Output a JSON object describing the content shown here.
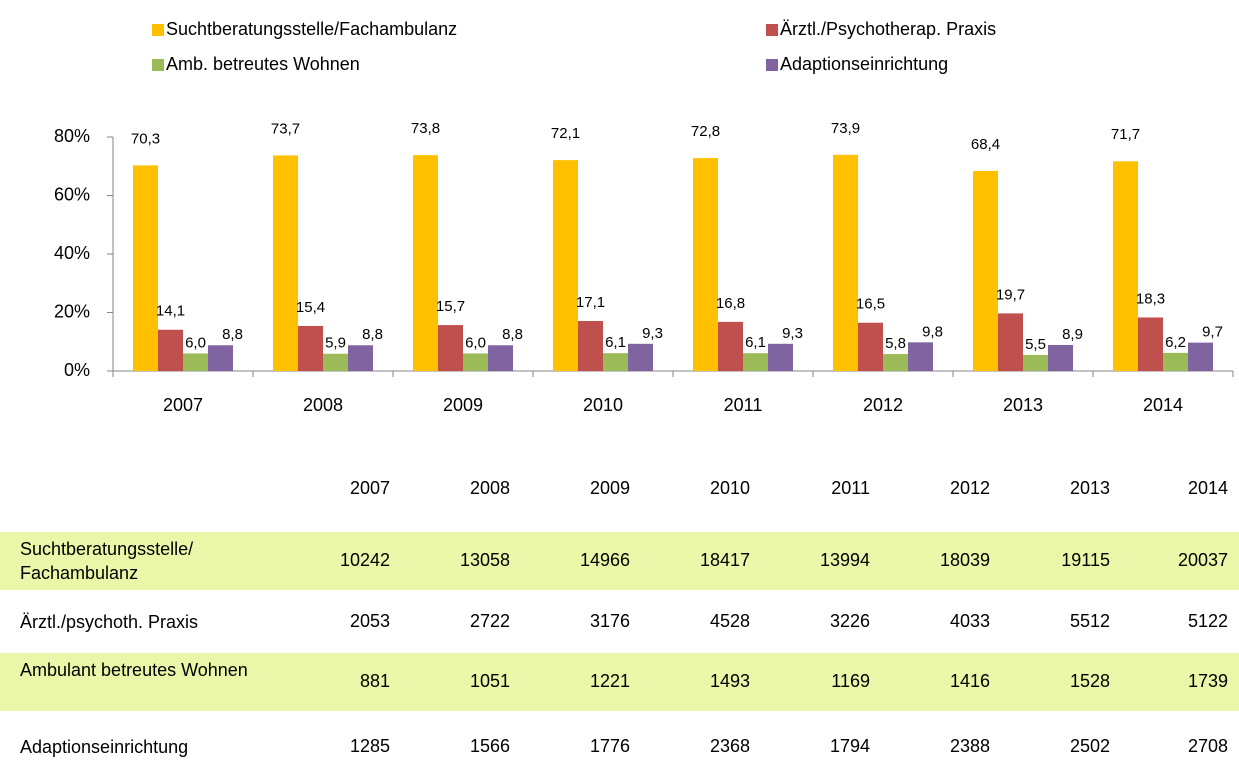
{
  "chart_data": {
    "type": "bar",
    "categories": [
      "2007",
      "2008",
      "2009",
      "2010",
      "2011",
      "2012",
      "2013",
      "2014"
    ],
    "series": [
      {
        "name": "Suchtberatungsstelle/Fachambulanz",
        "color": "#ffc000",
        "values": [
          70.3,
          73.7,
          73.8,
          72.1,
          72.8,
          73.9,
          68.4,
          71.7
        ],
        "value_labels": [
          "70,3",
          "73,7",
          "73,8",
          "72,1",
          "72,8",
          "73,9",
          "68,4",
          "71,7"
        ]
      },
      {
        "name": "Ärztl./Psychotherap. Praxis",
        "color": "#c0504d",
        "values": [
          14.1,
          15.4,
          15.7,
          17.1,
          16.8,
          16.5,
          19.7,
          18.3
        ],
        "value_labels": [
          "14,1",
          "15,4",
          "15,7",
          "17,1",
          "16,8",
          "16,5",
          "19,7",
          "18,3"
        ]
      },
      {
        "name": "Amb. betreutes Wohnen",
        "color": "#9bbb59",
        "values": [
          6.0,
          5.9,
          6.0,
          6.1,
          6.1,
          5.8,
          5.5,
          6.2
        ],
        "value_labels": [
          "6,0",
          "5,9",
          "6,0",
          "6,1",
          "6,1",
          "5,8",
          "5,5",
          "6,2"
        ]
      },
      {
        "name": "Adaptionseinrichtung",
        "color": "#8064a2",
        "values": [
          8.8,
          8.8,
          8.8,
          9.3,
          9.3,
          9.8,
          8.9,
          9.7
        ],
        "value_labels": [
          "8,8",
          "8,8",
          "8,8",
          "9,3",
          "9,3",
          "9,8",
          "8,9",
          "9,7"
        ]
      }
    ],
    "ylim": [
      0,
      80
    ],
    "yticks": [
      {
        "value": 0,
        "label": "0%"
      },
      {
        "value": 20,
        "label": "20%"
      },
      {
        "value": 40,
        "label": "40%"
      },
      {
        "value": 60,
        "label": "60%"
      },
      {
        "value": 80,
        "label": "80%"
      }
    ],
    "legend": "top"
  },
  "table": {
    "header": [
      "2007",
      "2008",
      "2009",
      "2010",
      "2011",
      "2012",
      "2013",
      "2014"
    ],
    "rows": [
      {
        "label": "Suchtberatungsstelle/ Fachambulanz",
        "values": [
          "10242",
          "13058",
          "14966",
          "18417",
          "13994",
          "18039",
          "19115",
          "20037"
        ]
      },
      {
        "label": "Ärztl./psychoth. Praxis",
        "values": [
          "2053",
          "2722",
          "3176",
          "4528",
          "3226",
          "4033",
          "5512",
          "5122"
        ]
      },
      {
        "label": "Ambulant betreutes Wohnen",
        "values": [
          "881",
          "1051",
          "1221",
          "1493",
          "1169",
          "1416",
          "1528",
          "1739"
        ]
      },
      {
        "label": "Adaptionseinrichtung",
        "values": [
          "1285",
          "1566",
          "1776",
          "2368",
          "1794",
          "2388",
          "2502",
          "2708"
        ]
      }
    ]
  }
}
